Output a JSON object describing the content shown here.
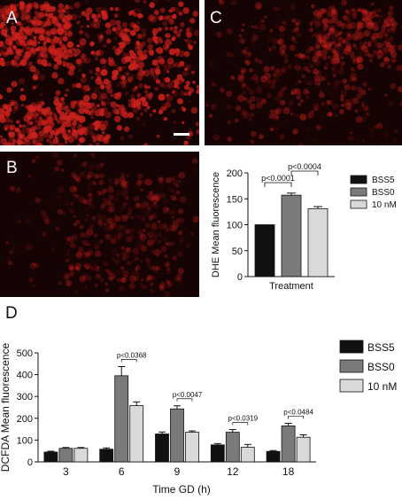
{
  "panels": {
    "a": {
      "label": "A"
    },
    "b": {
      "label": "B"
    },
    "c": {
      "label": "C"
    },
    "d": {
      "label": "D"
    }
  },
  "colors": {
    "bss5": "#111111",
    "bss0": "#7a7a7a",
    "nm10": "#d9d9d9",
    "micro_bg": "#160303",
    "micro_cells": "#c8201c"
  },
  "chart_data": [
    {
      "type": "bar",
      "ylabel": "DHE Mean fluorescence",
      "xlabel": "Treatment",
      "ylim": [
        0,
        200
      ],
      "yticks": [
        0,
        50,
        100,
        150,
        200
      ],
      "categories": [
        "BSS5",
        "BSS0",
        "10 nM"
      ],
      "values": [
        100,
        157,
        131
      ],
      "errors": [
        0,
        4,
        4
      ],
      "legend": [
        "BSS5",
        "BSS0",
        "10 nM"
      ],
      "legend_position": "right",
      "grid": false,
      "annotations": [
        {
          "text": "p<0.0001",
          "from": 0,
          "to": 1
        },
        {
          "text": "p<0.0004",
          "from": 1,
          "to": 2
        }
      ]
    },
    {
      "type": "bar",
      "ylabel": "DCFDA Mean fluorescence",
      "xlabel": "Time GD (h)",
      "ylim": [
        0,
        500
      ],
      "yticks": [
        0,
        100,
        200,
        300,
        400,
        500
      ],
      "categories": [
        "3",
        "6",
        "9",
        "12",
        "18"
      ],
      "series": [
        {
          "name": "BSS5",
          "values": [
            45,
            58,
            128,
            78,
            48
          ],
          "errors": [
            4,
            6,
            9,
            6,
            4
          ]
        },
        {
          "name": "BSS0",
          "values": [
            62,
            395,
            243,
            136,
            165
          ],
          "errors": [
            4,
            42,
            14,
            12,
            12
          ]
        },
        {
          "name": "10 nM",
          "values": [
            62,
            258,
            136,
            67,
            113
          ],
          "errors": [
            4,
            17,
            6,
            13,
            11
          ]
        }
      ],
      "legend_position": "right",
      "grid": false,
      "annotations": [
        {
          "text": "p<0.0368",
          "category": 1
        },
        {
          "text": "p<0.0047",
          "category": 2
        },
        {
          "text": "p<0.0319",
          "category": 3
        },
        {
          "text": "p<0.0484",
          "category": 4
        }
      ]
    }
  ]
}
